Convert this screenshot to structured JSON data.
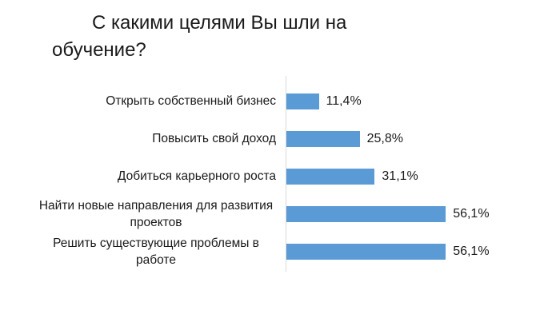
{
  "slide": {
    "background": "#ffffff"
  },
  "title": {
    "line1": "С какими целями Вы шли на",
    "line2": "обучение?"
  },
  "chart_data": {
    "type": "bar",
    "orientation": "horizontal",
    "title": "С какими целями Вы шли на обучение?",
    "categories": [
      "Открыть собственный бизнес",
      "Повысить свой доход",
      "Добиться карьерного роста",
      "Найти новые направления для развития проектов",
      "Решить существующие проблемы в работе"
    ],
    "values": [
      11.4,
      25.8,
      31.1,
      56.1,
      56.1
    ],
    "value_labels": [
      "11,4%",
      "25,8%",
      "31,1%",
      "56,1%",
      "56,1%"
    ],
    "xlabel": "",
    "ylabel": "",
    "xlim": [
      0,
      60
    ],
    "grid": false,
    "legend": false,
    "value_labels_position": "end-of-bar",
    "bar_color": "#5b9bd5",
    "axis_line_color": "#d9d9d9",
    "text_color": "#1a1a1a"
  }
}
